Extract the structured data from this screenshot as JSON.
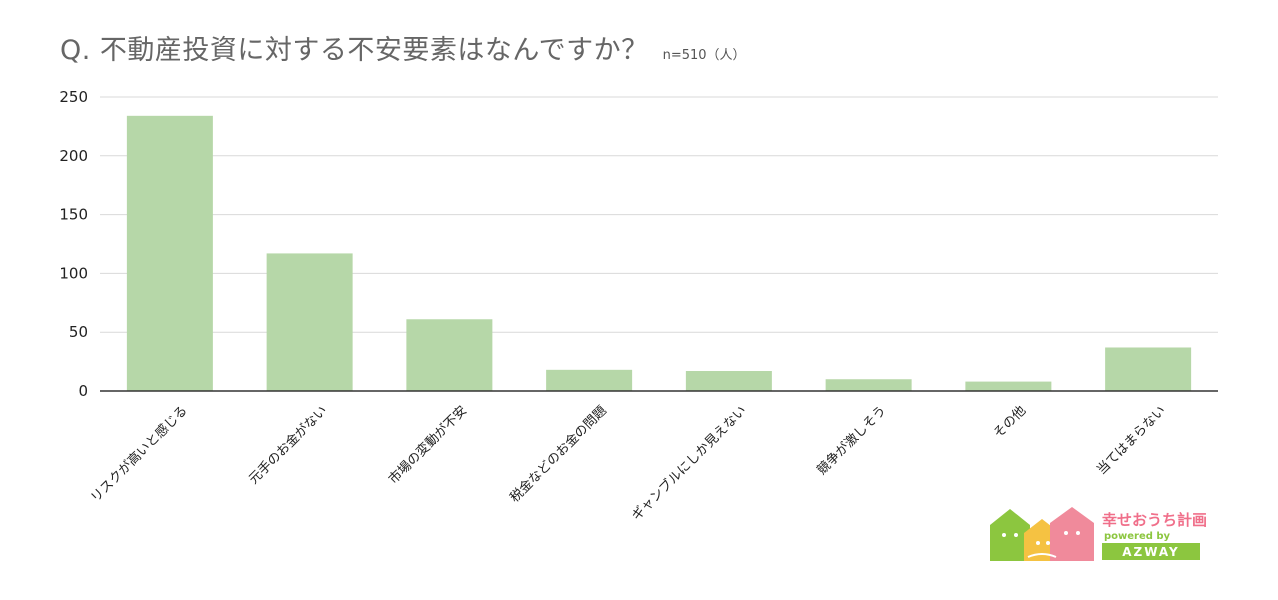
{
  "chart_data": {
    "type": "bar",
    "title": "Q. 不動産投資に対する不安要素はなんですか？",
    "subtitle": "n=510（人）",
    "xlabel": "",
    "ylabel": "",
    "categories": [
      "リスクが高いと感じる",
      "元手のお金がない",
      "市場の変動が不安",
      "税金などのお金の問題",
      "ギャンブルにしか見えない",
      "競争が激しそう",
      "その他",
      "当てはまらない"
    ],
    "values": [
      234,
      117,
      61,
      18,
      17,
      10,
      8,
      37
    ],
    "ylim": [
      0,
      250
    ],
    "yticks": [
      0,
      50,
      100,
      150,
      200,
      250
    ],
    "grid": true,
    "bar_color": "#b6d7a8",
    "grid_color": "#d9d9d9",
    "axis_color": "#333333"
  },
  "logo": {
    "name": "幸せおうち計画",
    "tagline": "powered by",
    "brand": "AZWAY",
    "colors": {
      "green": "#8cc63f",
      "yellow": "#f5c242",
      "pink": "#f08a9b",
      "pink_text": "#f06f8a"
    }
  }
}
